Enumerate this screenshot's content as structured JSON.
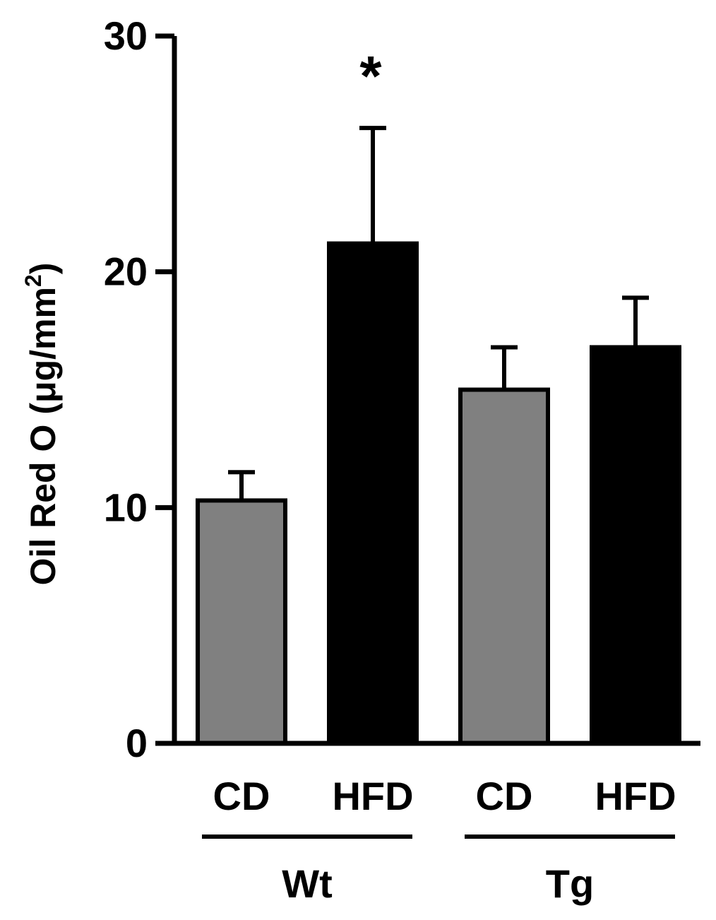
{
  "chart_data": {
    "type": "bar",
    "title": "",
    "xlabel": "",
    "ylabel": "Oil Red O (μg/mm",
    "ylabel_superscript": "2",
    "ylabel_close": ")",
    "ylim": [
      0,
      30
    ],
    "yticks": [
      0,
      10,
      20,
      30
    ],
    "yticklabels": [
      "0",
      "10",
      "20",
      "30"
    ],
    "categories": [
      "CD",
      "HFD",
      "CD",
      "HFD"
    ],
    "values": [
      10.3,
      21.2,
      15.0,
      16.8
    ],
    "errors": [
      1.2,
      4.9,
      1.8,
      2.1
    ],
    "bar_colors": [
      "#808080",
      "#000000",
      "#808080",
      "#000000"
    ],
    "groups": [
      {
        "label": "Wt",
        "members": [
          0,
          1
        ]
      },
      {
        "label": "Tg",
        "members": [
          2,
          3
        ]
      }
    ],
    "annotations": [
      {
        "bar": 1,
        "text": "*"
      }
    ],
    "grid": false,
    "legend": "none"
  }
}
